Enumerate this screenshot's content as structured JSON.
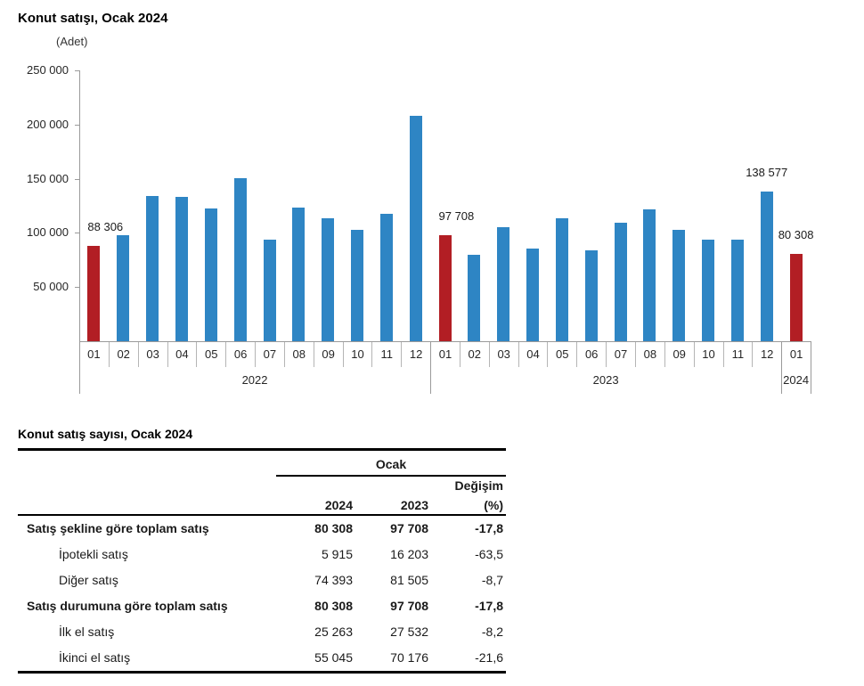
{
  "chart": {
    "title": "Konut satışı, Ocak 2024",
    "unit_label": "(Adet)",
    "axis_color": "#9a9a9a",
    "separator_color": "#b5b5b5",
    "label_color": "#262626"
  },
  "chart_data": {
    "type": "bar",
    "title": "Konut satışı, Ocak 2024",
    "ylabel": "(Adet)",
    "xlabel": "",
    "grid": false,
    "legend_position": "none",
    "ylim": [
      0,
      250000
    ],
    "yticks": [
      250000,
      200000,
      150000,
      100000,
      50000
    ],
    "ytick_labels": [
      "250 000",
      "200 000",
      "150 000",
      "100 000",
      "50 000"
    ],
    "categories": [
      "01",
      "02",
      "03",
      "04",
      "05",
      "06",
      "07",
      "08",
      "09",
      "10",
      "11",
      "12",
      "01",
      "02",
      "03",
      "04",
      "05",
      "06",
      "07",
      "08",
      "09",
      "10",
      "11",
      "12",
      "01"
    ],
    "year_groups": [
      {
        "label": "2022",
        "start": 0,
        "count": 12
      },
      {
        "label": "2023",
        "start": 12,
        "count": 12
      },
      {
        "label": "2024",
        "start": 24,
        "count": 1
      }
    ],
    "values": [
      88306,
      97587,
      134170,
      133058,
      122768,
      150509,
      93902,
      123491,
      113402,
      102533,
      117806,
      207963,
      97708,
      80031,
      105476,
      85652,
      113280,
      83636,
      109548,
      122091,
      102656,
      93761,
      93514,
      138577,
      80308
    ],
    "highlight_indexes": [
      0,
      12,
      24
    ],
    "bar_color": "#2E85C4",
    "highlight_color": "#B21E24",
    "annotations": [
      {
        "index": 0,
        "label": "88 306",
        "align": "left"
      },
      {
        "index": 12,
        "label": "97 708",
        "align": "left"
      },
      {
        "index": 23,
        "label": "138 577",
        "align": "center"
      },
      {
        "index": 24,
        "label": "80 308",
        "align": "center"
      }
    ]
  },
  "table": {
    "title": "Konut satış sayısı, Ocak 2024",
    "col_group_header": "Ocak",
    "change_header_line1": "Değişim",
    "change_header_line2": "(%)",
    "col_headers": [
      "2024",
      "2023"
    ],
    "rows": [
      {
        "label": "Satış şekline göre toplam satış",
        "v2024": "80 308",
        "v2023": "97 708",
        "change": "-17,8",
        "bold": true,
        "indent": false
      },
      {
        "label": "İpotekli satış",
        "v2024": "5 915",
        "v2023": "16 203",
        "change": "-63,5",
        "bold": false,
        "indent": true
      },
      {
        "label": "Diğer satış",
        "v2024": "74 393",
        "v2023": "81 505",
        "change": "-8,7",
        "bold": false,
        "indent": true
      },
      {
        "label": "Satış durumuna göre toplam satış",
        "v2024": "80 308",
        "v2023": "97 708",
        "change": "-17,8",
        "bold": true,
        "indent": false
      },
      {
        "label": "İlk el satış",
        "v2024": "25 263",
        "v2023": "27 532",
        "change": "-8,2",
        "bold": false,
        "indent": true
      },
      {
        "label": "İkinci el satış",
        "v2024": "55 045",
        "v2023": "70 176",
        "change": "-21,6",
        "bold": false,
        "indent": true
      }
    ]
  }
}
